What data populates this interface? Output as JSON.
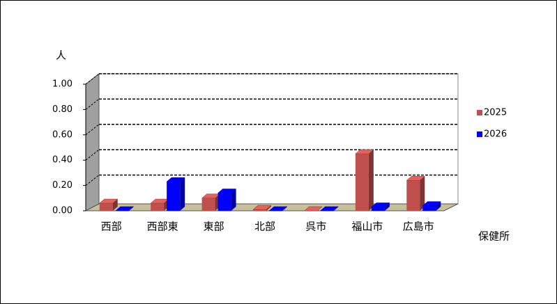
{
  "chart_data": {
    "type": "bar3d",
    "y_label": "人",
    "x_label": "保健所",
    "categories": [
      "西部",
      "西部東",
      "東部",
      "北部",
      "呉市",
      "福山市",
      "広島市"
    ],
    "series": [
      {
        "name": "2025",
        "color": "#c0504d",
        "values": [
          0.06,
          0.06,
          0.1,
          0.01,
          0.0,
          0.45,
          0.24
        ]
      },
      {
        "name": "2026",
        "color": "#0000ff",
        "values": [
          0.0,
          0.23,
          0.14,
          0.0,
          0.0,
          0.03,
          0.04
        ]
      }
    ],
    "ylim": [
      0,
      1
    ],
    "yticks": [
      {
        "value": 0,
        "label": "0.00"
      },
      {
        "value": 0.2,
        "label": "0.20"
      },
      {
        "value": 0.4,
        "label": "0.40"
      },
      {
        "value": 0.6,
        "label": "0.60"
      },
      {
        "value": 0.8,
        "label": "0.80"
      },
      {
        "value": 1,
        "label": "1.00"
      }
    ],
    "grid": true,
    "legend": "right"
  }
}
